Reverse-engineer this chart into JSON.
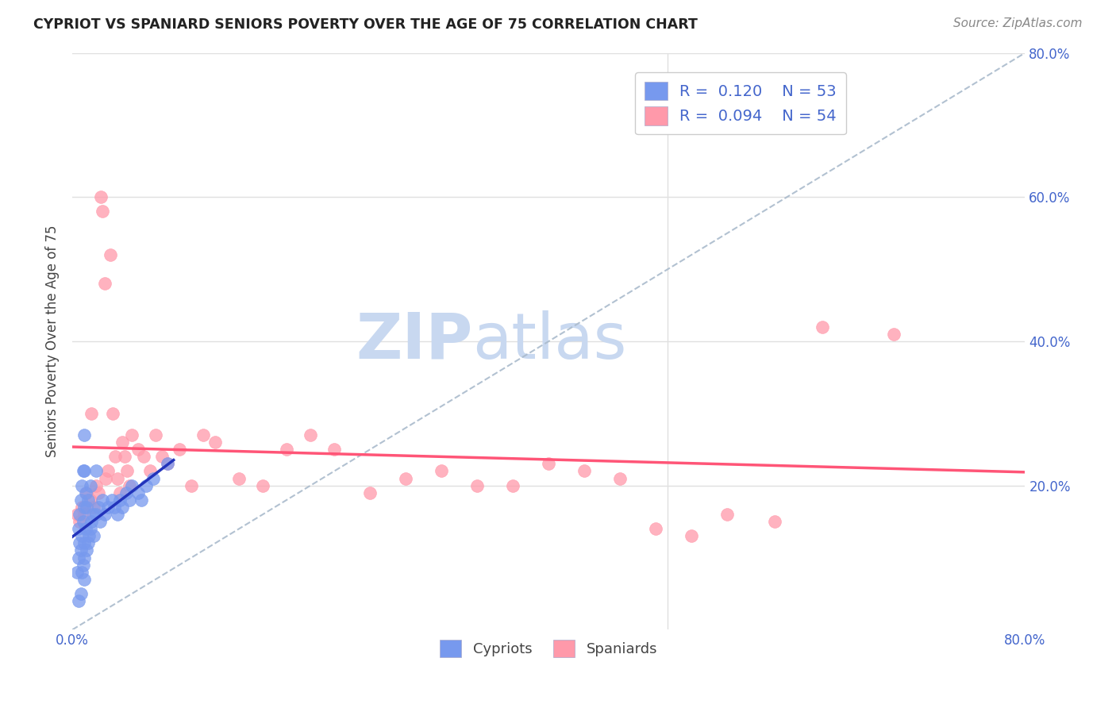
{
  "title": "CYPRIOT VS SPANIARD SENIORS POVERTY OVER THE AGE OF 75 CORRELATION CHART",
  "source": "Source: ZipAtlas.com",
  "ylabel": "Seniors Poverty Over the Age of 75",
  "xlim": [
    0.0,
    0.8
  ],
  "ylim": [
    0.0,
    0.8
  ],
  "cypriot_color": "#7799ee",
  "spaniard_color": "#ff99aa",
  "cypriot_R": 0.12,
  "cypriot_N": 53,
  "spaniard_R": 0.094,
  "spaniard_N": 54,
  "cypriot_trend_color": "#2233bb",
  "spaniard_trend_color": "#ff5577",
  "diagonal_color": "#aabbcc",
  "watermark_zip": "ZIP",
  "watermark_atlas": "atlas",
  "watermark_color_zip": "#c8d8f0",
  "watermark_color_atlas": "#c8d8f0",
  "background_color": "#ffffff",
  "grid_color": "#e0e0e0",
  "tick_color": "#4466cc",
  "cypriot_x": [
    0.004,
    0.005,
    0.005,
    0.005,
    0.006,
    0.006,
    0.007,
    0.007,
    0.007,
    0.008,
    0.008,
    0.008,
    0.009,
    0.009,
    0.009,
    0.01,
    0.01,
    0.01,
    0.01,
    0.01,
    0.01,
    0.011,
    0.011,
    0.012,
    0.012,
    0.013,
    0.013,
    0.014,
    0.015,
    0.015,
    0.016,
    0.017,
    0.018,
    0.02,
    0.02,
    0.022,
    0.023,
    0.025,
    0.027,
    0.03,
    0.033,
    0.035,
    0.038,
    0.04,
    0.042,
    0.045,
    0.048,
    0.05,
    0.055,
    0.058,
    0.062,
    0.068,
    0.08
  ],
  "cypriot_y": [
    0.08,
    0.1,
    0.14,
    0.04,
    0.12,
    0.16,
    0.05,
    0.11,
    0.18,
    0.08,
    0.13,
    0.2,
    0.09,
    0.15,
    0.22,
    0.07,
    0.12,
    0.17,
    0.22,
    0.27,
    0.1,
    0.14,
    0.19,
    0.11,
    0.17,
    0.12,
    0.18,
    0.13,
    0.14,
    0.2,
    0.15,
    0.16,
    0.13,
    0.16,
    0.22,
    0.17,
    0.15,
    0.18,
    0.16,
    0.17,
    0.18,
    0.17,
    0.16,
    0.18,
    0.17,
    0.19,
    0.18,
    0.2,
    0.19,
    0.18,
    0.2,
    0.21,
    0.23
  ],
  "spaniard_x": [
    0.004,
    0.006,
    0.008,
    0.01,
    0.012,
    0.015,
    0.016,
    0.018,
    0.02,
    0.022,
    0.024,
    0.025,
    0.027,
    0.028,
    0.03,
    0.032,
    0.034,
    0.036,
    0.038,
    0.04,
    0.042,
    0.044,
    0.046,
    0.048,
    0.05,
    0.055,
    0.06,
    0.065,
    0.07,
    0.075,
    0.08,
    0.09,
    0.1,
    0.11,
    0.12,
    0.14,
    0.16,
    0.18,
    0.2,
    0.22,
    0.25,
    0.28,
    0.31,
    0.34,
    0.37,
    0.4,
    0.43,
    0.46,
    0.49,
    0.52,
    0.55,
    0.59,
    0.63,
    0.69
  ],
  "spaniard_y": [
    0.16,
    0.15,
    0.17,
    0.16,
    0.19,
    0.18,
    0.3,
    0.17,
    0.2,
    0.19,
    0.6,
    0.58,
    0.48,
    0.21,
    0.22,
    0.52,
    0.3,
    0.24,
    0.21,
    0.19,
    0.26,
    0.24,
    0.22,
    0.2,
    0.27,
    0.25,
    0.24,
    0.22,
    0.27,
    0.24,
    0.23,
    0.25,
    0.2,
    0.27,
    0.26,
    0.21,
    0.2,
    0.25,
    0.27,
    0.25,
    0.19,
    0.21,
    0.22,
    0.2,
    0.2,
    0.23,
    0.22,
    0.21,
    0.14,
    0.13,
    0.16,
    0.15,
    0.42,
    0.41
  ]
}
